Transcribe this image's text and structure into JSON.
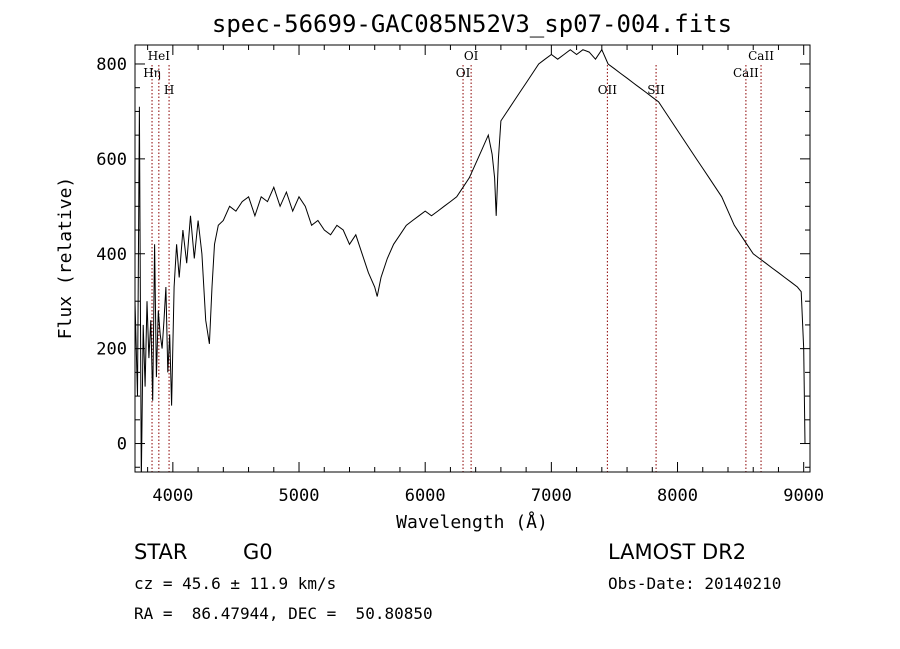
{
  "chart_data": {
    "type": "line",
    "title": "spec-56699-GAC085N52V3_sp07-004.fits",
    "xlabel": "Wavelength (Å)",
    "ylabel": "Flux (relative)",
    "xlim": [
      3700,
      9050
    ],
    "ylim": [
      -60,
      840
    ],
    "xticks": [
      4000,
      5000,
      6000,
      7000,
      8000,
      9000
    ],
    "yticks": [
      0,
      200,
      400,
      600,
      800
    ],
    "grid": false,
    "line_color": "#000000",
    "marker_color": "#8b0000",
    "series": [
      {
        "x": [
          3700,
          3720,
          3735,
          3750,
          3765,
          3780,
          3795,
          3810,
          3825,
          3840,
          3855,
          3870,
          3885,
          3900,
          3915,
          3930,
          3945,
          3960,
          3975,
          3990,
          4010,
          4030,
          4050,
          4080,
          4110,
          4140,
          4170,
          4200,
          4230,
          4260,
          4290,
          4310,
          4330,
          4360,
          4400,
          4450,
          4500,
          4550,
          4600,
          4650,
          4700,
          4750,
          4800,
          4850,
          4900,
          4950,
          5000,
          5050,
          5100,
          5150,
          5200,
          5250,
          5300,
          5350,
          5400,
          5450,
          5500,
          5550,
          5600,
          5620,
          5650,
          5700,
          5750,
          5800,
          5850,
          5900,
          5950,
          6000,
          6050,
          6100,
          6150,
          6200,
          6250,
          6300,
          6350,
          6400,
          6450,
          6500,
          6530,
          6550,
          6563,
          6580,
          6600,
          6650,
          6700,
          6750,
          6800,
          6850,
          6900,
          6950,
          7000,
          7050,
          7100,
          7150,
          7200,
          7250,
          7300,
          7350,
          7400,
          7450,
          7500,
          7550,
          7600,
          7650,
          7700,
          7750,
          7800,
          7850,
          7900,
          7950,
          8000,
          8050,
          8100,
          8150,
          8200,
          8250,
          8300,
          8350,
          8400,
          8450,
          8500,
          8550,
          8600,
          8650,
          8700,
          8750,
          8800,
          8850,
          8900,
          8950,
          8980,
          9000,
          9010
        ],
        "y": [
          300,
          100,
          710,
          -80,
          250,
          120,
          300,
          180,
          260,
          90,
          420,
          140,
          280,
          230,
          200,
          260,
          330,
          150,
          230,
          80,
          330,
          420,
          350,
          450,
          380,
          480,
          390,
          470,
          400,
          260,
          210,
          330,
          420,
          460,
          470,
          500,
          490,
          510,
          520,
          480,
          520,
          510,
          540,
          500,
          530,
          490,
          520,
          500,
          460,
          470,
          450,
          440,
          460,
          450,
          420,
          440,
          400,
          360,
          330,
          310,
          350,
          390,
          420,
          440,
          460,
          470,
          480,
          490,
          480,
          490,
          500,
          510,
          520,
          540,
          560,
          590,
          620,
          650,
          610,
          560,
          480,
          600,
          680,
          700,
          720,
          740,
          760,
          780,
          800,
          810,
          820,
          810,
          820,
          830,
          820,
          830,
          825,
          810,
          830,
          800,
          790,
          780,
          770,
          760,
          750,
          740,
          730,
          720,
          700,
          680,
          660,
          640,
          620,
          600,
          580,
          560,
          540,
          520,
          490,
          460,
          440,
          420,
          400,
          390,
          380,
          370,
          360,
          350,
          340,
          330,
          320,
          200,
          0
        ]
      }
    ],
    "line_markers": [
      {
        "label": "Hη",
        "x": 3835,
        "label_row": 2
      },
      {
        "label": "HeI",
        "x": 3889,
        "label_row": 1
      },
      {
        "label": "H",
        "x": 3970,
        "label_row": 3
      },
      {
        "label": "OI",
        "x": 6300,
        "label_row": 2
      },
      {
        "label": "OI",
        "x": 6364,
        "label_row": 1
      },
      {
        "label": "OII",
        "x": 7444,
        "label_row": 3
      },
      {
        "label": "SII",
        "x": 7830,
        "label_row": 3
      },
      {
        "label": "CaII",
        "x": 8542,
        "label_row": 2
      },
      {
        "label": "CaII",
        "x": 8662,
        "label_row": 1
      }
    ]
  },
  "info": {
    "object_class": "STAR",
    "subclass": "G0",
    "survey": "LAMOST DR2",
    "cz": "cz = 45.6 ± 11.9 km/s",
    "obs_date": "Obs-Date: 20140210",
    "coords": "RA =  86.47944, DEC =  50.80850"
  }
}
